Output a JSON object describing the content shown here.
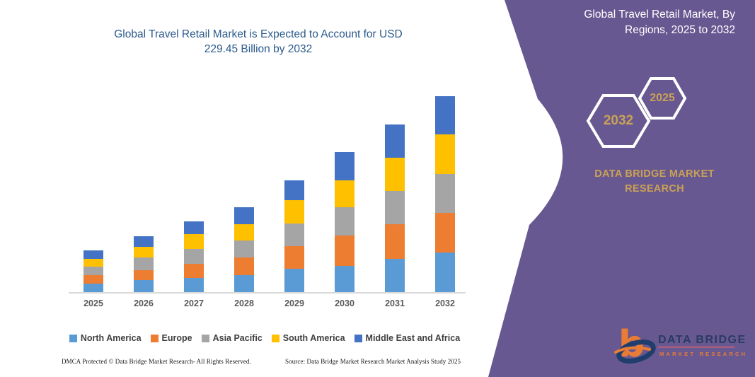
{
  "chart_data": {
    "type": "bar",
    "stacked": true,
    "title": "Global Travel Retail Market is Expected to Account for USD 229.45 Billion by 2032",
    "title_lines": [
      "Global Travel Retail Market is Expected to Account for USD",
      "229.45 Billion by 2032"
    ],
    "unit": "USD Billion",
    "categories": [
      "2025",
      "2026",
      "2027",
      "2028",
      "2029",
      "2030",
      "2031",
      "2032"
    ],
    "series": [
      {
        "name": "North America",
        "color": "#5B9BD5",
        "values": [
          10.2,
          14.0,
          16.2,
          20.0,
          27.3,
          30.9,
          38.9,
          46.4
        ]
      },
      {
        "name": "Europe",
        "color": "#ED7D31",
        "values": [
          9.8,
          11.8,
          16.8,
          20.5,
          26.5,
          35.6,
          40.6,
          46.4
        ]
      },
      {
        "name": "Asia Pacific",
        "color": "#A5A5A5",
        "values": [
          9.7,
          14.5,
          17.5,
          20.5,
          26.5,
          33.1,
          38.9,
          45.6
        ]
      },
      {
        "name": "South America",
        "color": "#FFC000",
        "values": [
          9.7,
          12.5,
          17.3,
          18.4,
          27.3,
          31.5,
          38.9,
          46.4
        ]
      },
      {
        "name": "Middle East and Africa",
        "color": "#4472C4",
        "values": [
          9.5,
          12.6,
          15.0,
          20.0,
          23.3,
          32.9,
          39.0,
          44.65
        ]
      }
    ],
    "totals": [
      48.9,
      65.4,
      82.8,
      99.4,
      130.9,
      164.0,
      196.3,
      229.45
    ],
    "ylim": [
      0,
      240
    ],
    "grid": false,
    "legend_position": "bottom"
  },
  "side_panel": {
    "heading": "Global Travel Retail Market, By Regions, 2025 to 2032",
    "heading_lines": [
      "Global Travel Retail Market, By",
      "Regions, 2025 to 2032"
    ],
    "hexagons": [
      {
        "label": "2032"
      },
      {
        "label": "2025"
      }
    ],
    "brand_lines": [
      "DATA BRIDGE MARKET",
      "RESEARCH"
    ],
    "background_color": "#685891",
    "accent_gold": "#C9A156",
    "logo": {
      "monogram": "b",
      "name": "DATA BRIDGE",
      "tagline": "MARKET RESEARCH"
    }
  },
  "footer": {
    "left": "DMCA Protected © Data Bridge Market Research-  All Rights Reserved.",
    "source": "Source: Data Bridge Market Research  Market Analysis Study 2025"
  }
}
